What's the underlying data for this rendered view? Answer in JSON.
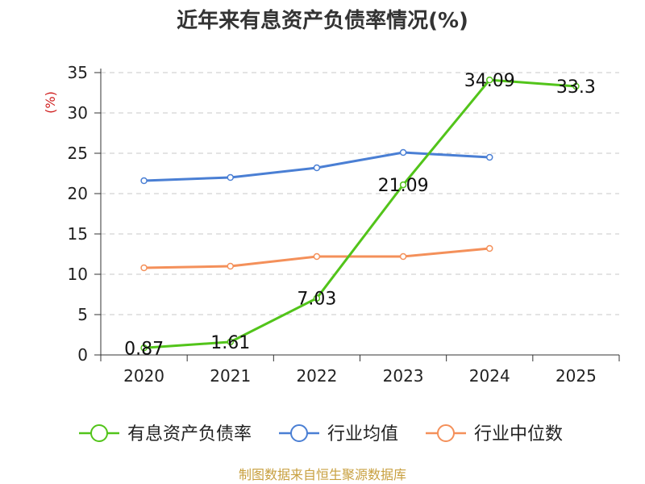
{
  "chart_data": {
    "type": "line",
    "title": "近年来有息资产负债率情况(%)",
    "ylabel": "(%)",
    "xlabel": "",
    "categories": [
      "2020",
      "2021",
      "2022",
      "2023",
      "2024",
      "2025"
    ],
    "ylim": [
      0,
      35
    ],
    "yticks": [
      0,
      5,
      10,
      15,
      20,
      25,
      30,
      35
    ],
    "grid": "horizontal dashed",
    "legend_position": "bottom",
    "series": [
      {
        "name": "有息资产负债率",
        "color": "#52c41a",
        "values": [
          0.87,
          1.61,
          7.03,
          21.09,
          34.09,
          33.3
        ],
        "data_labels": [
          "0.87",
          "1.61",
          "7.03",
          "21.09",
          "34.09",
          "33.3"
        ]
      },
      {
        "name": "行业均值",
        "color": "#4a7fd4",
        "values": [
          21.6,
          22.0,
          23.2,
          25.1,
          24.5,
          null
        ]
      },
      {
        "name": "行业中位数",
        "color": "#f4905a",
        "values": [
          10.8,
          11.0,
          12.2,
          12.2,
          13.2,
          null
        ]
      }
    ]
  },
  "source": {
    "text": "制图数据来自恒生聚源数据库",
    "color": "#c8a040"
  }
}
